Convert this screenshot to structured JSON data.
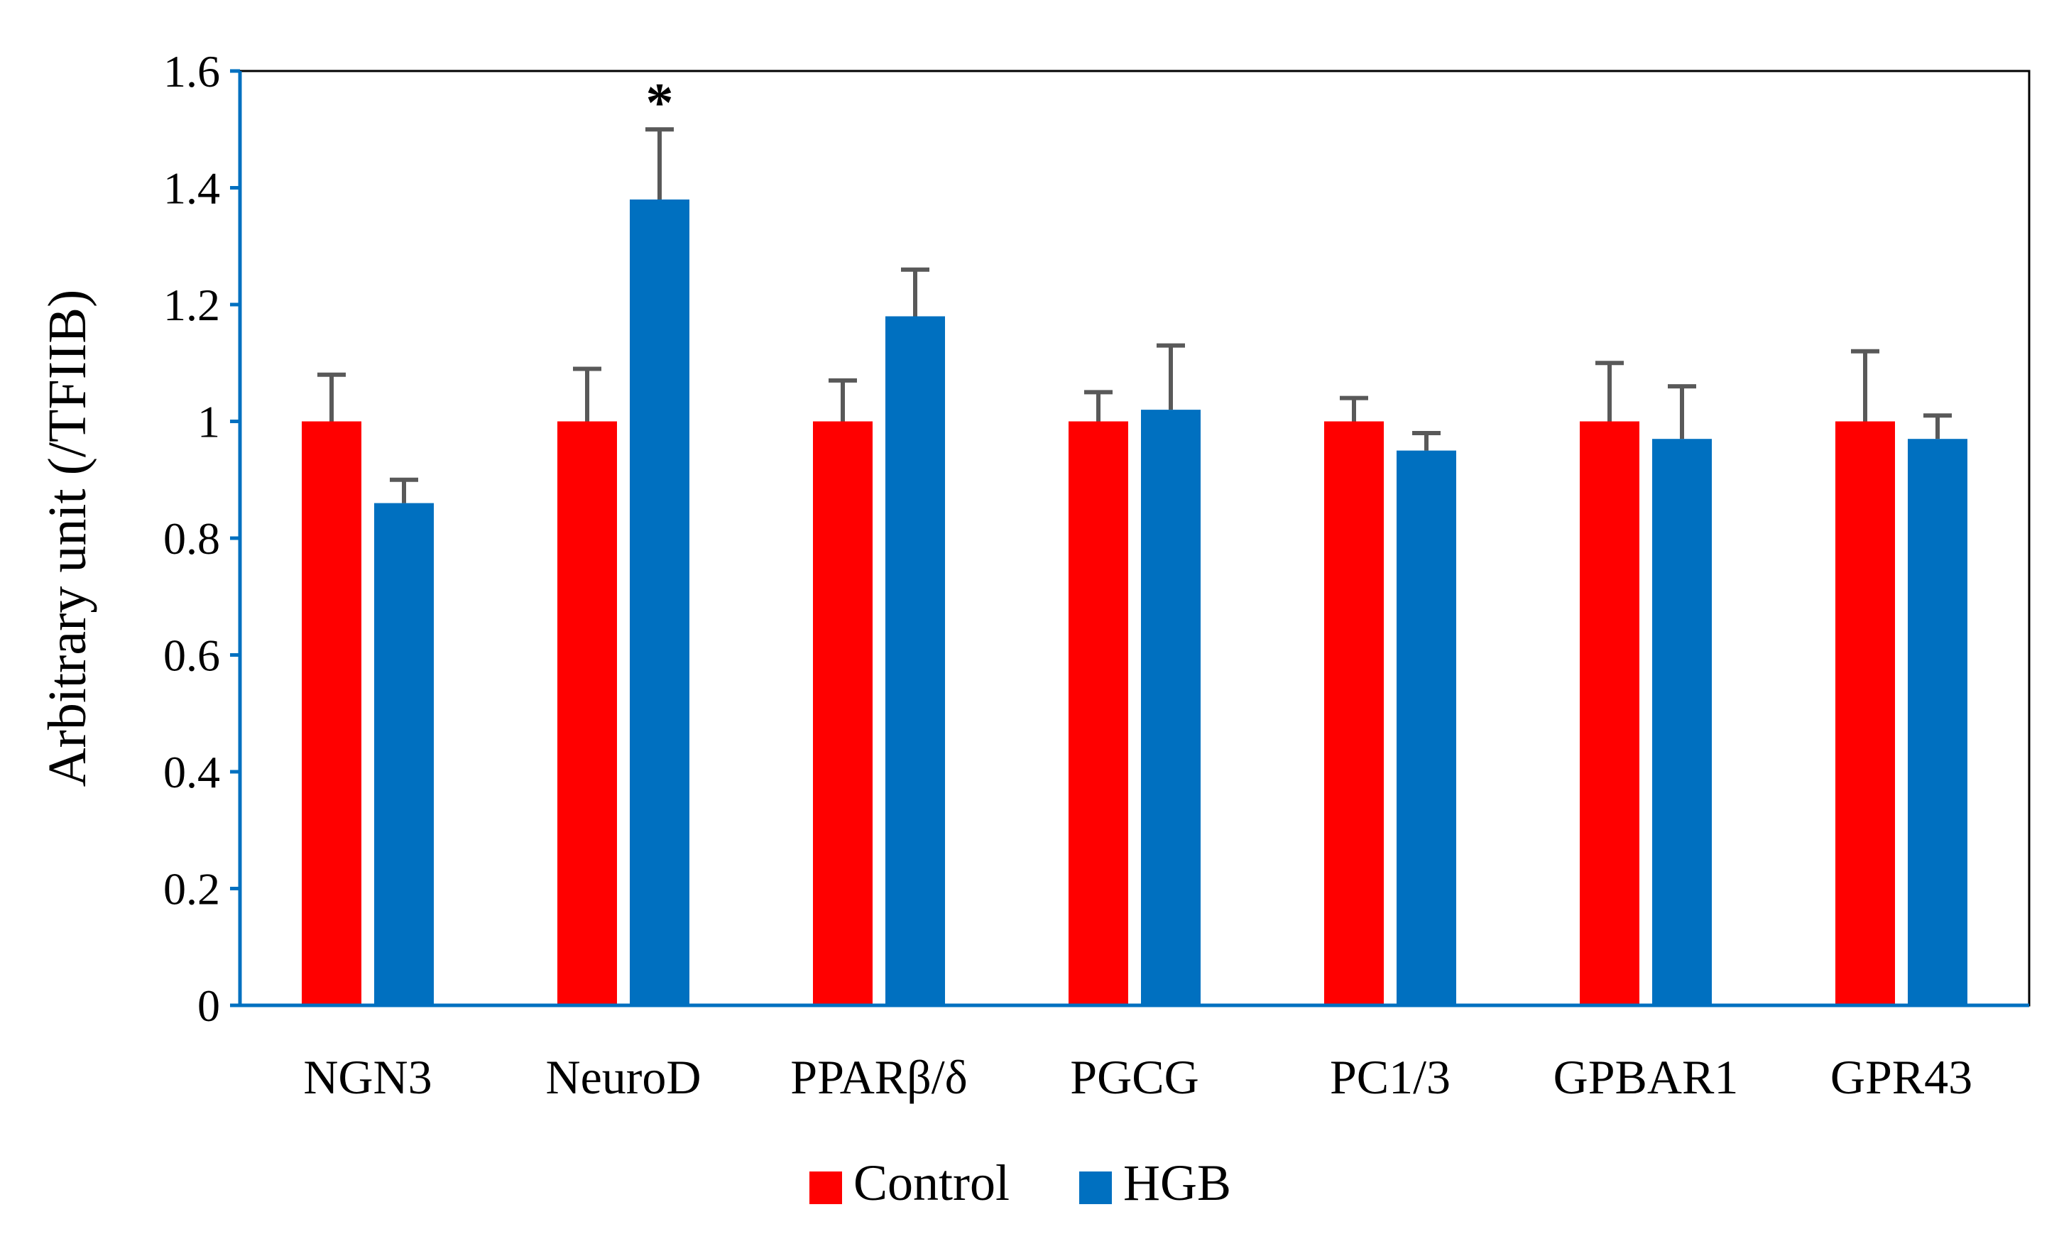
{
  "chart_data": {
    "type": "bar",
    "title": "",
    "xlabel": "",
    "ylabel": "Arbitrary unit (/TFIIB)",
    "ylim": [
      0,
      1.6
    ],
    "yticks": [
      0,
      0.2,
      0.4,
      0.6,
      0.8,
      1,
      1.2,
      1.4,
      1.6
    ],
    "ytick_labels": [
      "0",
      "0.2",
      "0.4",
      "0.6",
      "0.8",
      "1",
      "1.2",
      "1.4",
      "1.6"
    ],
    "categories": [
      "NGN3",
      "NeuroD",
      "PPARβ/δ",
      "PGCG",
      "PC1/3",
      "GPBAR1",
      "GPR43"
    ],
    "series": [
      {
        "name": "Control",
        "color": "#ff0000",
        "values": [
          1.0,
          1.0,
          1.0,
          1.0,
          1.0,
          1.0,
          1.0
        ],
        "errors": [
          0.08,
          0.09,
          0.07,
          0.05,
          0.04,
          0.1,
          0.12
        ]
      },
      {
        "name": "HGB",
        "color": "#0070c0",
        "values": [
          0.86,
          1.38,
          1.18,
          1.02,
          0.95,
          0.97,
          0.97
        ],
        "errors": [
          0.04,
          0.12,
          0.08,
          0.11,
          0.03,
          0.09,
          0.04
        ]
      }
    ],
    "annotations": [
      {
        "category": "NeuroD",
        "series": "HGB",
        "text": "*"
      }
    ],
    "legend_position": "bottom-center",
    "grid": false,
    "axis_color": "#0070c0",
    "errorbar_color": "#595959"
  }
}
